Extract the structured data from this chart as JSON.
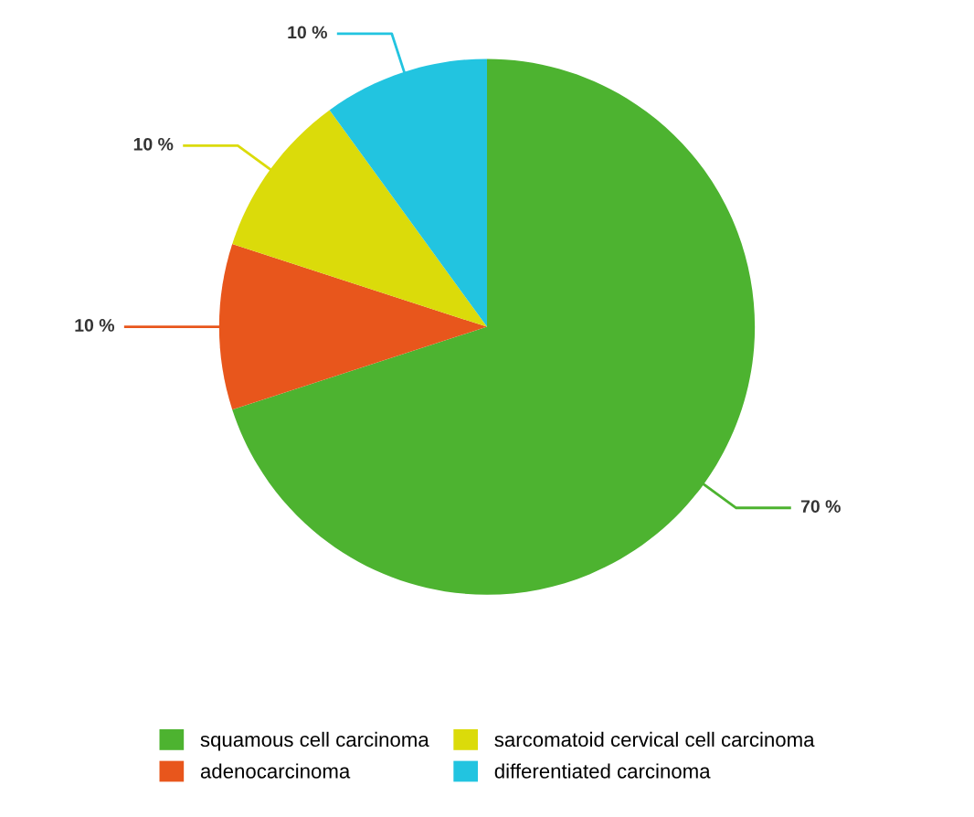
{
  "chart_data": {
    "type": "pie",
    "categories": [
      "squamous cell carcinoma",
      "adenocarcinoma",
      "sarcomatoid cervical cell carcinoma",
      "differentiated carcinoma"
    ],
    "values": [
      70,
      10,
      10,
      10
    ],
    "colors": [
      "#4db330",
      "#e8561c",
      "#dbdb0a",
      "#22c4e0"
    ],
    "value_labels": [
      "70 %",
      "10 %",
      "10 %",
      "10 %"
    ],
    "legend": "bottom"
  }
}
